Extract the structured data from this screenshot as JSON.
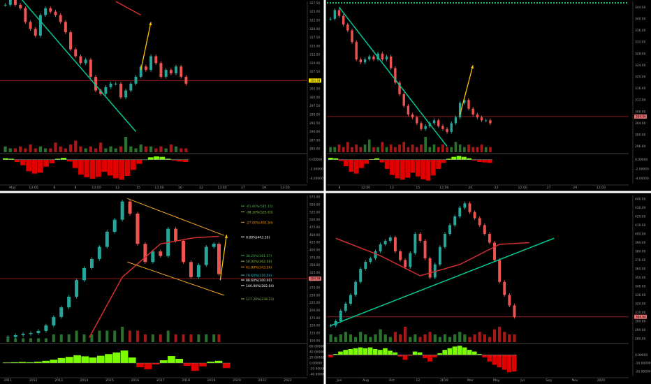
{
  "colors": {
    "background": "#000000",
    "divider": "#ffffff",
    "up": "#26a69a",
    "down": "#ef5350",
    "volume_up": "#2e7d32",
    "volume_down": "#b71c1c",
    "osc_up": "#7cfc00",
    "osc_down": "#e00000",
    "trend": "#00c896",
    "fib": "#f5a623",
    "ma_red": "#d32f2f",
    "price_tag_bg": "#ffee00",
    "price_tag_red": "#e57373",
    "axis_text": "#9e9e9e"
  },
  "chart_data": [
    {
      "type": "candlestick",
      "panel": "top-left",
      "y_ticks": [
        "327.50",
        "325.00",
        "322.50",
        "320.00",
        "317.50",
        "315.00",
        "312.50",
        "310.00",
        "307.50",
        "305.00",
        "302.50",
        "300.00",
        "297.50",
        "295.00",
        "292.50",
        "290.00",
        "287.50",
        "285.00"
      ],
      "ylim": [
        284,
        328
      ],
      "price_label": "304.94",
      "x_ticks": [
        "May",
        "13:00",
        "6",
        "8",
        "13:00",
        "13",
        "15",
        "13:00",
        "20",
        "22",
        "13:00",
        "27",
        "29",
        "13:00"
      ],
      "osc_ticks": [
        "0.00000",
        "-2.00000",
        "-4.00000"
      ],
      "osc_range": [
        -5,
        1
      ],
      "series": {
        "price": [
          327,
          329,
          327,
          326,
          322,
          320,
          318,
          324,
          326,
          325,
          324,
          322,
          319,
          314,
          312,
          310,
          311,
          306,
          302,
          301,
          303,
          304,
          304,
          300,
          302,
          304,
          306,
          309,
          308,
          312,
          310,
          306,
          308,
          307,
          309,
          306,
          304
        ],
        "volume": [
          3,
          2,
          2,
          3,
          2,
          4,
          2,
          3,
          2,
          2,
          5,
          3,
          2,
          4,
          6,
          3,
          2,
          3,
          2,
          5,
          2,
          3,
          2,
          3,
          8,
          3,
          2,
          4,
          3,
          3,
          2,
          3,
          2,
          4,
          3,
          2,
          2
        ],
        "oscillator": [
          0.3,
          0.2,
          -0.5,
          -1.2,
          -2.5,
          -3.0,
          -2.8,
          -1.5,
          -0.8,
          0.2,
          0.4,
          -0.4,
          -1.8,
          -3.2,
          -3.8,
          -4.1,
          -3.7,
          -2.6,
          -3.4,
          -4.0,
          -4.3,
          -3.5,
          -2.2,
          -0.9,
          0.0,
          0.5,
          0.7,
          0.6,
          0.2,
          -0.2,
          -0.4,
          -0.5
        ]
      },
      "trend_line": [
        [
          3,
          329
        ],
        [
          26,
          290
        ]
      ],
      "red_ma": [
        [
          22,
          328
        ],
        [
          27,
          324
        ]
      ],
      "projection": [
        [
          27,
          308
        ],
        [
          29,
          322
        ]
      ],
      "horizontal_level": 304.9
    },
    {
      "type": "candlestick",
      "panel": "top-right",
      "y_ticks": [
        "344.00",
        "340.00",
        "336.00",
        "332.00",
        "328.00",
        "324.00",
        "320.00",
        "316.00",
        "312.00",
        "308.00",
        "304.00",
        "300.00",
        "296.00"
      ],
      "ylim": [
        294,
        346
      ],
      "price_label": "304.94",
      "x_ticks": [
        "8",
        "12:00",
        "13",
        "15",
        "12:00",
        "20",
        "22",
        "12:00",
        "27",
        "29",
        "12:00"
      ],
      "osc_ticks": [
        "0.00000",
        "-2.00000",
        "-4.00000"
      ],
      "osc_range": [
        -5,
        1
      ],
      "series": {
        "price": [
          340,
          343,
          341,
          338,
          336,
          332,
          326,
          325,
          326,
          327,
          326,
          328,
          326,
          327,
          323,
          318,
          314,
          310,
          307,
          306,
          304,
          302,
          303,
          304,
          305,
          303,
          302,
          301,
          304,
          306,
          311,
          312,
          309,
          307,
          306,
          305,
          305,
          304
        ],
        "volume": [
          2,
          2,
          3,
          2,
          4,
          2,
          3,
          2,
          3,
          5,
          2,
          2,
          4,
          2,
          3,
          2,
          3,
          4,
          2,
          3,
          2,
          3,
          6,
          2,
          3,
          2,
          3,
          2,
          2,
          4,
          3,
          2,
          3,
          2,
          2,
          3,
          2,
          2
        ],
        "oscillator": [
          0.4,
          0.3,
          -0.3,
          -1.4,
          -2.6,
          -3.0,
          -1.8,
          -0.9,
          0.1,
          0.3,
          -0.6,
          -2.0,
          -3.3,
          -4.0,
          -4.3,
          -3.9,
          -2.8,
          -3.6,
          -4.2,
          -4.5,
          -3.4,
          -2.0,
          -0.7,
          0.2,
          0.6,
          0.8,
          0.6,
          0.3,
          -0.2,
          -0.5,
          -0.6,
          -0.7
        ]
      },
      "trend_line": [
        [
          2,
          344
        ],
        [
          27,
          296
        ]
      ],
      "projection": [
        [
          30,
          307
        ],
        [
          33,
          324
        ]
      ],
      "horizontal_level": 306.3,
      "dotted_top_level": 345.5
    },
    {
      "type": "candlestick",
      "panel": "bottom-left",
      "y_ticks": [
        "575.00",
        "550.00",
        "525.00",
        "500.00",
        "475.00",
        "450.00",
        "425.00",
        "400.00",
        "375.00",
        "350.00",
        "325.00",
        "300.00",
        "275.00",
        "250.00",
        "225.00",
        "200.00",
        "175.00",
        "150.00",
        "125.00",
        "100.00"
      ],
      "ylim": [
        95,
        580
      ],
      "price_label": "304.94",
      "x_ticks": [
        "2011",
        "2012",
        "2013",
        "2014",
        "2015",
        "2016",
        "2017",
        "2018",
        "2019",
        "2020",
        "2021",
        "2022"
      ],
      "x_range": [
        2010.8,
        2022.5
      ],
      "osc_ticks": [
        "60.00000",
        "40.00000",
        "20.00000",
        "0.00000",
        "-20.00000",
        "-40.00000"
      ],
      "osc_range": [
        -45,
        65
      ],
      "fib_levels": [
        {
          "label": "-61.80%(545.15)",
          "price": 545.15,
          "color": "#4caf50"
        },
        {
          "label": "-38.20%(525.63)",
          "price": 525.63,
          "color": "#8bc34a"
        },
        {
          "label": "-27.00%(491.50)",
          "price": 491.5,
          "color": "#ff9800"
        },
        {
          "label": "0.00%(443.10)",
          "price": 443.1,
          "color": "#ffffff"
        },
        {
          "label": "38.20%(381.57)",
          "price": 381.57,
          "color": "#4caf50"
        },
        {
          "label": "50.00%(362.50)",
          "price": 362.5,
          "color": "#8bc34a"
        },
        {
          "label": "61.80%(343.56)",
          "price": 343.56,
          "color": "#ff9800"
        },
        {
          "label": "78.60%(316.50)",
          "price": 316.5,
          "color": "#26c6da"
        },
        {
          "label": "88.60%(300.40)",
          "price": 300.4,
          "color": "#ffffff"
        },
        {
          "label": "100.00%(282.04)",
          "price": 282.04,
          "color": "#ffffff"
        },
        {
          "label": "127.20%(238.23)",
          "price": 238.23,
          "color": "#8bc34a"
        }
      ],
      "series": {
        "x": [
          2011.0,
          2011.3,
          2011.6,
          2011.9,
          2012.2,
          2012.5,
          2012.8,
          2013.1,
          2013.4,
          2013.7,
          2014.0,
          2014.3,
          2014.6,
          2014.9,
          2015.2,
          2015.5,
          2015.8,
          2016.1,
          2016.4,
          2016.7,
          2017.0,
          2017.3,
          2017.6,
          2017.9,
          2018.2,
          2018.5,
          2018.8,
          2019.1,
          2019.3
        ],
        "price": [
          112,
          118,
          122,
          125,
          132,
          150,
          178,
          210,
          245,
          300,
          340,
          370,
          410,
          460,
          500,
          560,
          520,
          420,
          360,
          395,
          380,
          470,
          430,
          360,
          310,
          350,
          410,
          420,
          320
        ],
        "volume": [
          1,
          1,
          1,
          1,
          1,
          1,
          2,
          2,
          2,
          3,
          2,
          2,
          3,
          3,
          3,
          4,
          3,
          3,
          2,
          2,
          2,
          3,
          2,
          2,
          2,
          2,
          2,
          2,
          2
        ],
        "oscillator": [
          2,
          3,
          4,
          3,
          5,
          8,
          12,
          18,
          22,
          28,
          24,
          20,
          26,
          32,
          38,
          45,
          20,
          -15,
          -22,
          -5,
          10,
          25,
          15,
          -10,
          -28,
          -12,
          5,
          8,
          -18
        ]
      },
      "channel_top": [
        [
          2015.7,
          570
        ],
        [
          2019.5,
          448
        ]
      ],
      "channel_bottom": [
        [
          2015.7,
          360
        ],
        [
          2019.5,
          250
        ]
      ],
      "red_ma": [
        [
          2014.2,
          110
        ],
        [
          2015.5,
          310
        ],
        [
          2017.0,
          420
        ],
        [
          2018.3,
          440
        ],
        [
          2019.3,
          445
        ]
      ],
      "projection": [
        [
          2019.35,
          300
        ],
        [
          2019.6,
          450
        ]
      ],
      "horizontal_level": 304.9
    },
    {
      "type": "candlestick",
      "panel": "bottom-right",
      "y_ticks": [
        "440.00",
        "430.00",
        "420.00",
        "410.00",
        "400.00",
        "390.00",
        "380.00",
        "370.00",
        "360.00",
        "350.00",
        "340.00",
        "330.00",
        "320.00",
        "310.00",
        "300.00",
        "290.00",
        "280.00"
      ],
      "ylim": [
        276,
        444
      ],
      "price_label": "304.94",
      "x_ticks": [
        "Jun",
        "Aug",
        "Oct",
        "12",
        "2019",
        "Mar",
        "May",
        "Jul",
        "Sep",
        "Nov",
        "2020"
      ],
      "osc_ticks": [
        "0.00000",
        "-10.00000",
        "-20.00000"
      ],
      "osc_range": [
        -25,
        12
      ],
      "series": {
        "price": [
          295,
          300,
          312,
          320,
          330,
          345,
          360,
          368,
          372,
          380,
          388,
          392,
          396,
          380,
          370,
          362,
          378,
          400,
          392,
          372,
          350,
          365,
          385,
          400,
          410,
          420,
          430,
          435,
          425,
          418,
          410,
          400,
          390,
          370,
          345,
          330,
          318,
          305
        ],
        "volume": [
          3,
          2,
          3,
          4,
          3,
          2,
          4,
          3,
          2,
          3,
          5,
          3,
          2,
          4,
          3,
          6,
          2,
          3,
          2,
          3,
          4,
          3,
          2,
          3,
          2,
          3,
          4,
          3,
          2,
          3,
          4,
          3,
          2,
          5,
          6,
          4,
          3,
          3
        ],
        "oscillator": [
          -3,
          1,
          4,
          6,
          7,
          8,
          9,
          8,
          9,
          7,
          6,
          8,
          5,
          3,
          -2,
          -6,
          -1,
          4,
          3,
          -4,
          -8,
          -3,
          2,
          6,
          8,
          10,
          11,
          9,
          6,
          4,
          1,
          -3,
          -8,
          -12,
          -15,
          -18,
          -21,
          -20
        ]
      },
      "trend_line": [
        [
          0,
          295
        ],
        [
          45,
          395
        ]
      ],
      "red_ma": [
        [
          1,
          395
        ],
        [
          10,
          375
        ],
        [
          18,
          352
        ],
        [
          26,
          365
        ],
        [
          34,
          388
        ],
        [
          40,
          390
        ]
      ],
      "horizontal_level": 305.0
    }
  ]
}
